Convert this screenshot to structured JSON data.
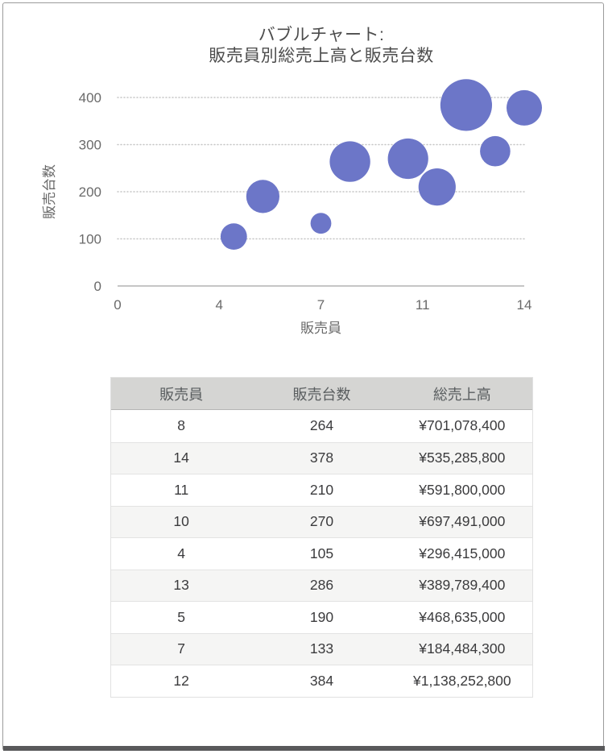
{
  "frame": {
    "border_color": "#9b9b9b",
    "bottom_bar_color": "#59595b"
  },
  "chart": {
    "title_lines": [
      "バブルチャート:",
      "販売員別総売上高と販売台数"
    ],
    "x_axis_title": "販売員",
    "y_axis_title": "販売台数",
    "bubble_color": "#6C76C8",
    "gridline_color": "#c6c6c6",
    "axis_line_color": "#b3b3b3",
    "tick_label_color": "#6a6a6a",
    "title_color": "#4c4c4c"
  },
  "chart_data": {
    "type": "scatter",
    "variant": "bubble",
    "title": "バブルチャート: 販売員別総売上高と販売台数",
    "xlabel": "販売員",
    "ylabel": "販売台数",
    "xlim": [
      0,
      14
    ],
    "ylim": [
      0,
      400
    ],
    "x_tick_labels": [
      "0",
      "4",
      "7",
      "11",
      "14"
    ],
    "y_tick_labels": [
      "0",
      "100",
      "200",
      "300",
      "400"
    ],
    "grid": "horizontal-dotted",
    "legend": "none",
    "size_field": "総売上高",
    "points": [
      {
        "x": 8,
        "y": 264,
        "size": 701078400
      },
      {
        "x": 14,
        "y": 378,
        "size": 535285800
      },
      {
        "x": 11,
        "y": 210,
        "size": 591800000
      },
      {
        "x": 10,
        "y": 270,
        "size": 697491000
      },
      {
        "x": 4,
        "y": 105,
        "size": 296415000
      },
      {
        "x": 13,
        "y": 286,
        "size": 389789400
      },
      {
        "x": 5,
        "y": 190,
        "size": 468635000
      },
      {
        "x": 7,
        "y": 133,
        "size": 184484300
      },
      {
        "x": 12,
        "y": 384,
        "size": 1138252800
      }
    ]
  },
  "table": {
    "headers": [
      "販売員",
      "販売台数",
      "総売上高"
    ],
    "rows": [
      [
        "8",
        "264",
        "¥701,078,400"
      ],
      [
        "14",
        "378",
        "¥535,285,800"
      ],
      [
        "11",
        "210",
        "¥591,800,000"
      ],
      [
        "10",
        "270",
        "¥697,491,000"
      ],
      [
        "4",
        "105",
        "¥296,415,000"
      ],
      [
        "13",
        "286",
        "¥389,789,400"
      ],
      [
        "5",
        "190",
        "¥468,635,000"
      ],
      [
        "7",
        "133",
        "¥184,484,300"
      ],
      [
        "12",
        "384",
        "¥1,138,252,800"
      ]
    ],
    "header_bg": "#d5d5d3",
    "header_text_color": "#595d5f",
    "stripe_bg": "#f5f5f4",
    "cell_text_color": "#3b3b3d"
  }
}
